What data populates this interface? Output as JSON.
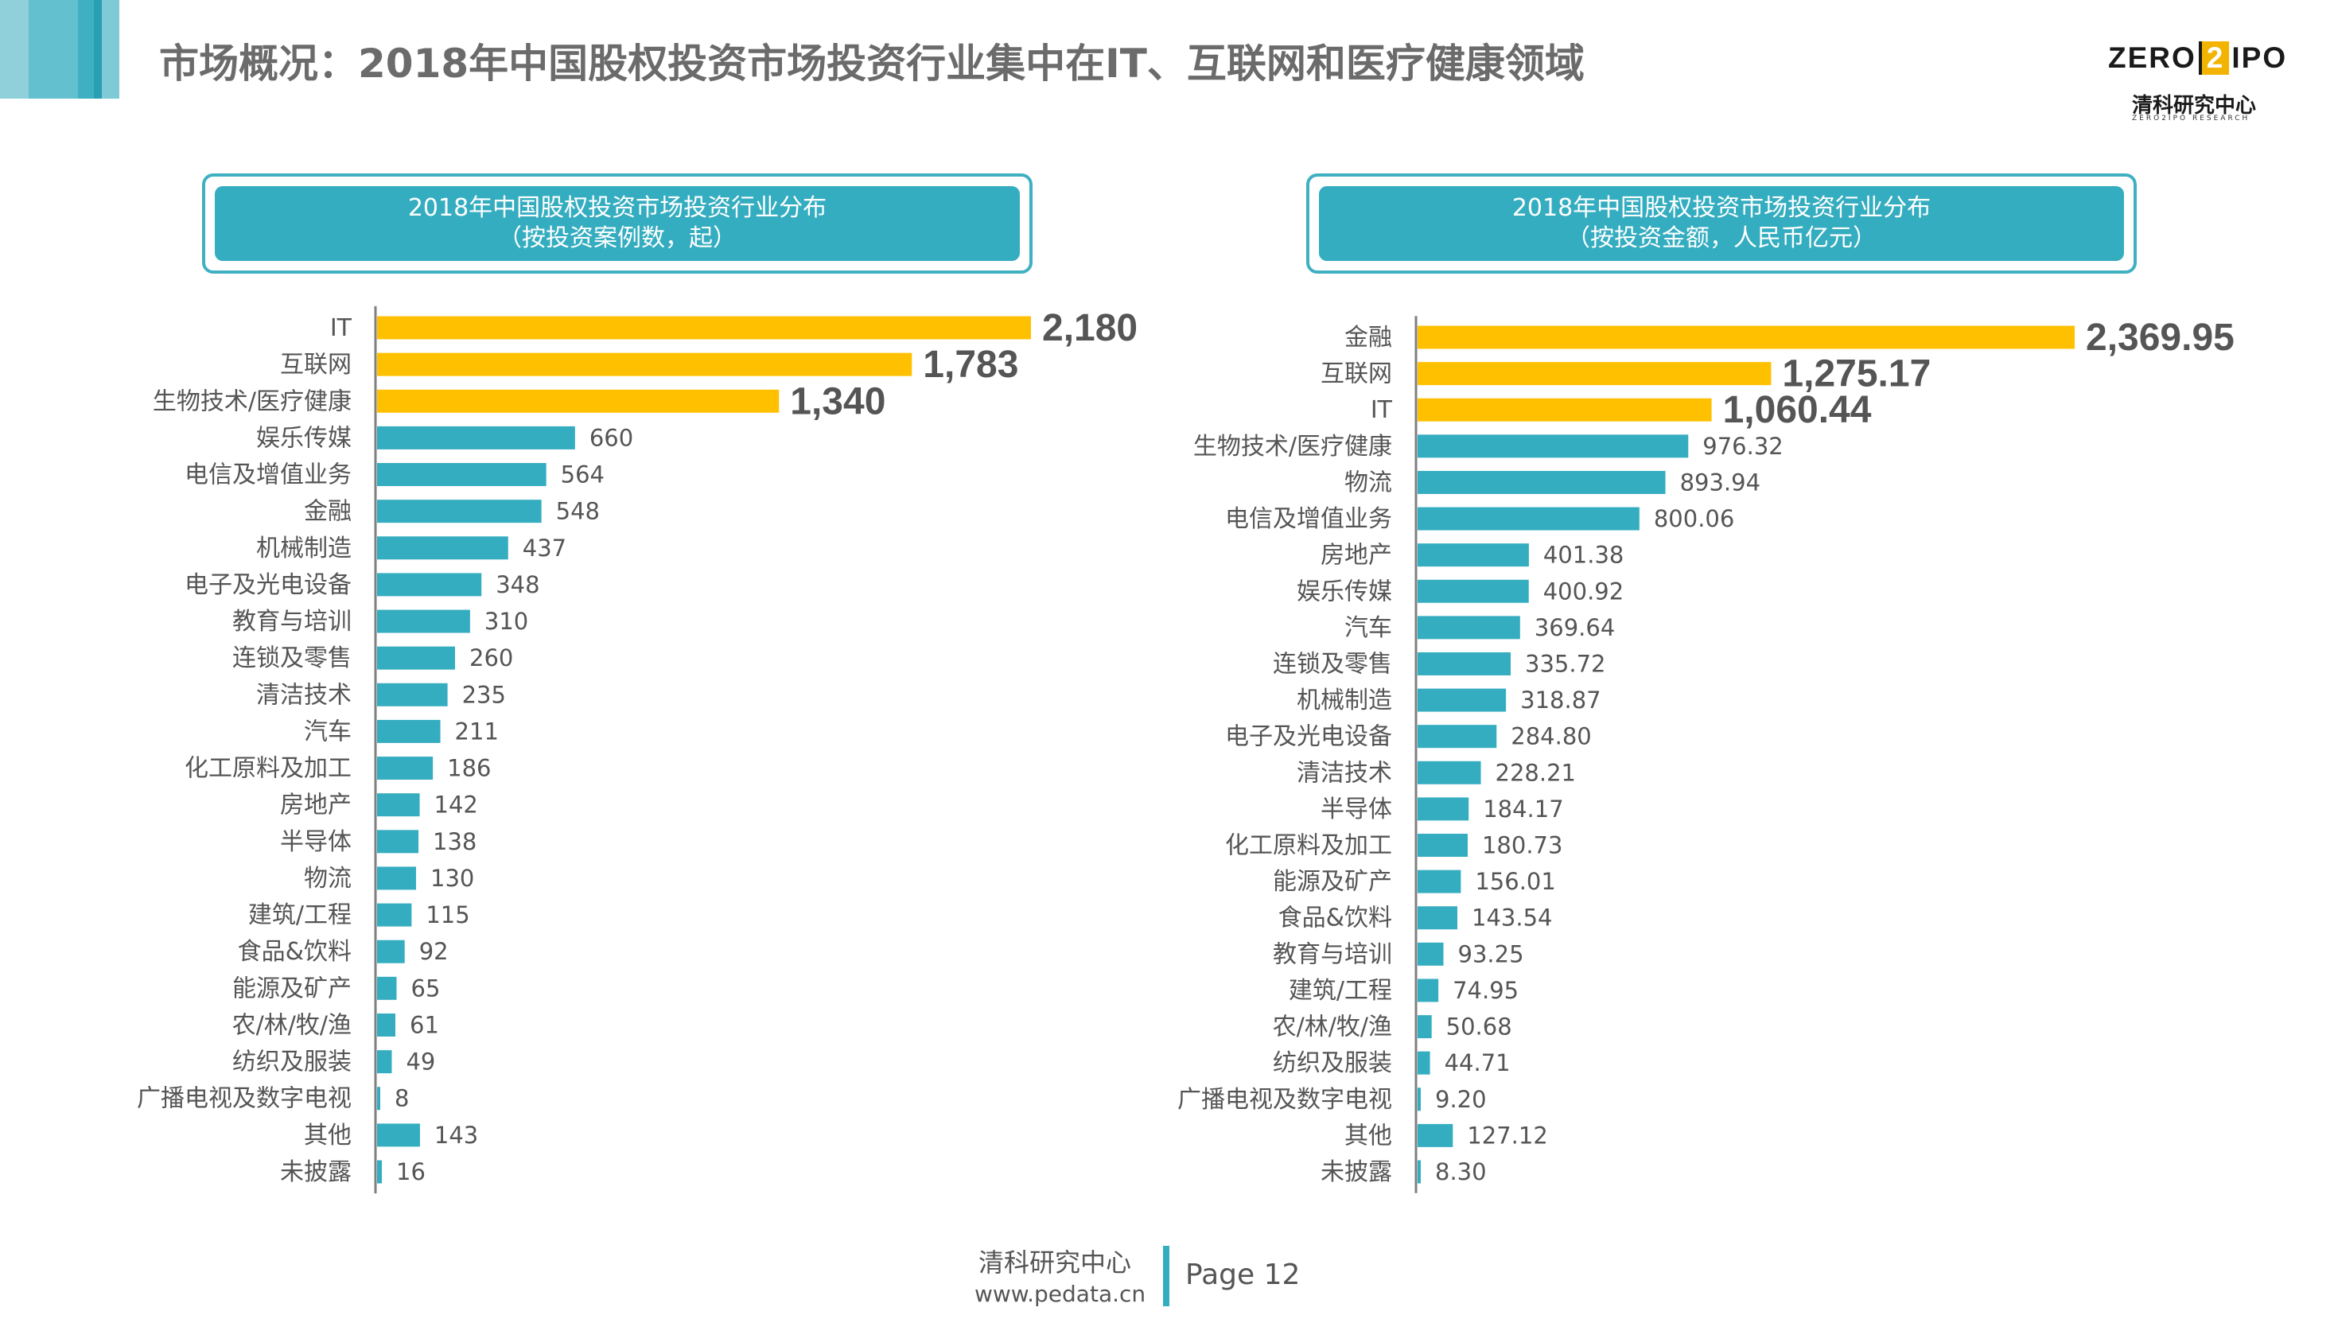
{
  "header": {
    "title": "市场概况：2018年中国股权投资市场投资行业集中在IT、互联网和医疗健康领域"
  },
  "logo": {
    "brand_left": "ZERO",
    "brand_num": "2",
    "brand_right": "IPO",
    "name_cn": "清科研究中心",
    "name_en": "ZERO2IPO RESEARCH"
  },
  "colors": {
    "highlight": "#ffc000",
    "bar": "#35adc0",
    "axis": "#7f7f7f"
  },
  "chart_data": [
    {
      "type": "bar",
      "orientation": "horizontal",
      "title": "2018年中国股权投资市场投资行业分布",
      "subtitle": "（按投资案例数，起）",
      "highlight_count": 3,
      "categories": [
        "IT",
        "互联网",
        "生物技术/医疗健康",
        "娱乐传媒",
        "电信及增值业务",
        "金融",
        "机械制造",
        "电子及光电设备",
        "教育与培训",
        "连锁及零售",
        "清洁技术",
        "汽车",
        "化工原料及加工",
        "房地产",
        "半导体",
        "物流",
        "建筑/工程",
        "食品&饮料",
        "能源及矿产",
        "农/林/牧/渔",
        "纺织及服装",
        "广播电视及数字电视",
        "其他",
        "未披露"
      ],
      "values": [
        2180,
        1783,
        1340,
        660,
        564,
        548,
        437,
        348,
        310,
        260,
        235,
        211,
        186,
        142,
        138,
        130,
        115,
        92,
        65,
        61,
        49,
        8,
        143,
        16
      ],
      "value_labels": [
        "2,180",
        "1,783",
        "1,340",
        "660",
        "564",
        "548",
        "437",
        "348",
        "310",
        "260",
        "235",
        "211",
        "186",
        "142",
        "138",
        "130",
        "115",
        "92",
        "65",
        "61",
        "49",
        "8",
        "143",
        "16"
      ],
      "xlim": [
        0,
        2180
      ]
    },
    {
      "type": "bar",
      "orientation": "horizontal",
      "title": "2018年中国股权投资市场投资行业分布",
      "subtitle": "（按投资金额，人民币亿元）",
      "highlight_count": 3,
      "categories": [
        "金融",
        "互联网",
        "IT",
        "生物技术/医疗健康",
        "物流",
        "电信及增值业务",
        "房地产",
        "娱乐传媒",
        "汽车",
        "连锁及零售",
        "机械制造",
        "电子及光电设备",
        "清洁技术",
        "半导体",
        "化工原料及加工",
        "能源及矿产",
        "食品&饮料",
        "教育与培训",
        "建筑/工程",
        "农/林/牧/渔",
        "纺织及服装",
        "广播电视及数字电视",
        "其他",
        "未披露"
      ],
      "values": [
        2369.95,
        1275.17,
        1060.44,
        976.32,
        893.94,
        800.06,
        401.38,
        400.92,
        369.64,
        335.72,
        318.87,
        284.8,
        228.21,
        184.17,
        180.73,
        156.01,
        143.54,
        93.25,
        74.95,
        50.68,
        44.71,
        9.2,
        127.12,
        8.3
      ],
      "value_labels": [
        "2,369.95",
        "1,275.17",
        "1,060.44",
        "976.32",
        "893.94",
        "800.06",
        "401.38",
        "400.92",
        "369.64",
        "335.72",
        "318.87",
        "284.80",
        "228.21",
        "184.17",
        "180.73",
        "156.01",
        "143.54",
        "93.25",
        "74.95",
        "50.68",
        "44.71",
        "9.20",
        "127.12",
        "8.30"
      ],
      "xlim": [
        0,
        2369.95
      ]
    }
  ],
  "footer": {
    "org": "清科研究中心",
    "url": "www.pedata.cn",
    "page": "Page 12"
  }
}
